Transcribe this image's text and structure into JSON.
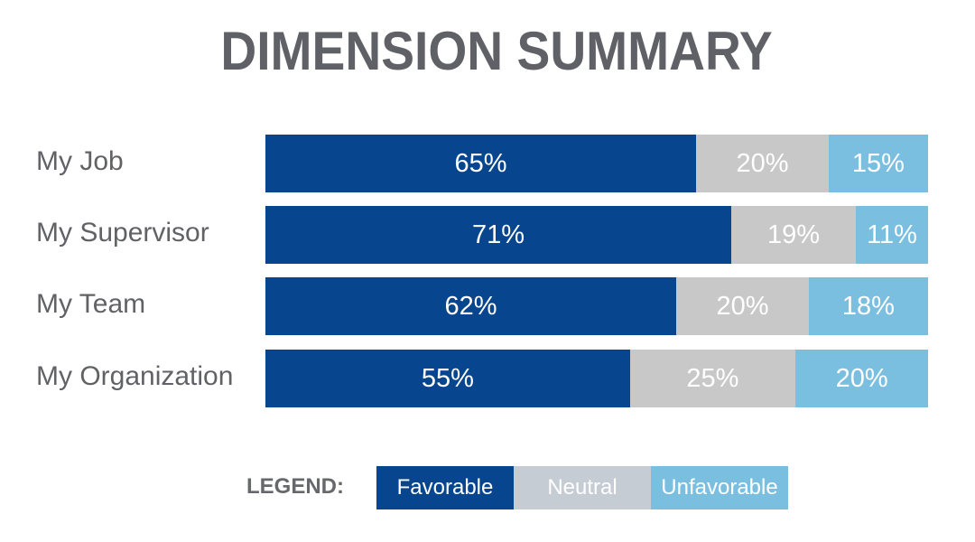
{
  "chart_data": {
    "type": "bar",
    "stacked": true,
    "orientation": "horizontal",
    "title": "DIMENSION SUMMARY",
    "categories": [
      "My Job",
      "My Supervisor",
      "My Team",
      "My Organization"
    ],
    "series": [
      {
        "name": "Favorable",
        "values": [
          65,
          71,
          62,
          55
        ],
        "color": "#07468f"
      },
      {
        "name": "Neutral",
        "values": [
          20,
          19,
          20,
          25
        ],
        "color": "#c8c8c8"
      },
      {
        "name": "Unfavorable",
        "values": [
          15,
          11,
          18,
          20
        ],
        "color": "#7abfe0"
      }
    ],
    "value_suffix": "%",
    "xlim": [
      0,
      100
    ],
    "grid": false,
    "legend": {
      "label": "LEGEND:",
      "placement": "bottom",
      "neutral_color": "#c6ccd4"
    }
  }
}
